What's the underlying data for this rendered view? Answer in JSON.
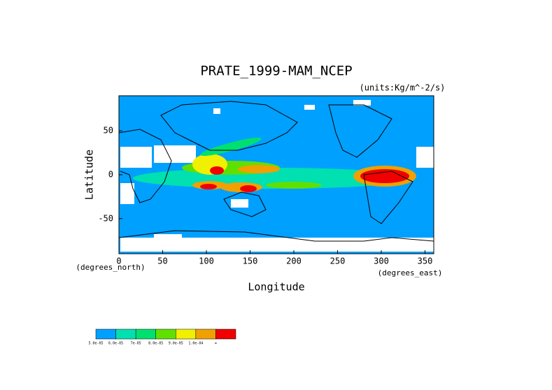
{
  "chart_data": {
    "type": "map",
    "title": "PRATE_1999-MAM_NCEP",
    "units": "(units:Kg/m^-2/s)",
    "xlabel": "Longitude",
    "ylabel": "Latitude",
    "x_unit_left": "(degrees_north)",
    "x_unit_right": "(degrees_east)",
    "xlim": [
      0,
      360
    ],
    "ylim": [
      -90,
      90
    ],
    "xticks": [
      0,
      50,
      100,
      150,
      200,
      250,
      300,
      350
    ],
    "yticks": [
      -50,
      0,
      50
    ],
    "colorbar": {
      "colors": [
        "#00a0ff",
        "#00e0b0",
        "#00e070",
        "#60e000",
        "#f0f000",
        "#f0a000",
        "#f00000"
      ],
      "labels": [
        "5.0e-05",
        "6.0e-05",
        "7e-05",
        "8.0e-05",
        "9.0e-05",
        "1.0e-04",
        "∞"
      ]
    }
  }
}
